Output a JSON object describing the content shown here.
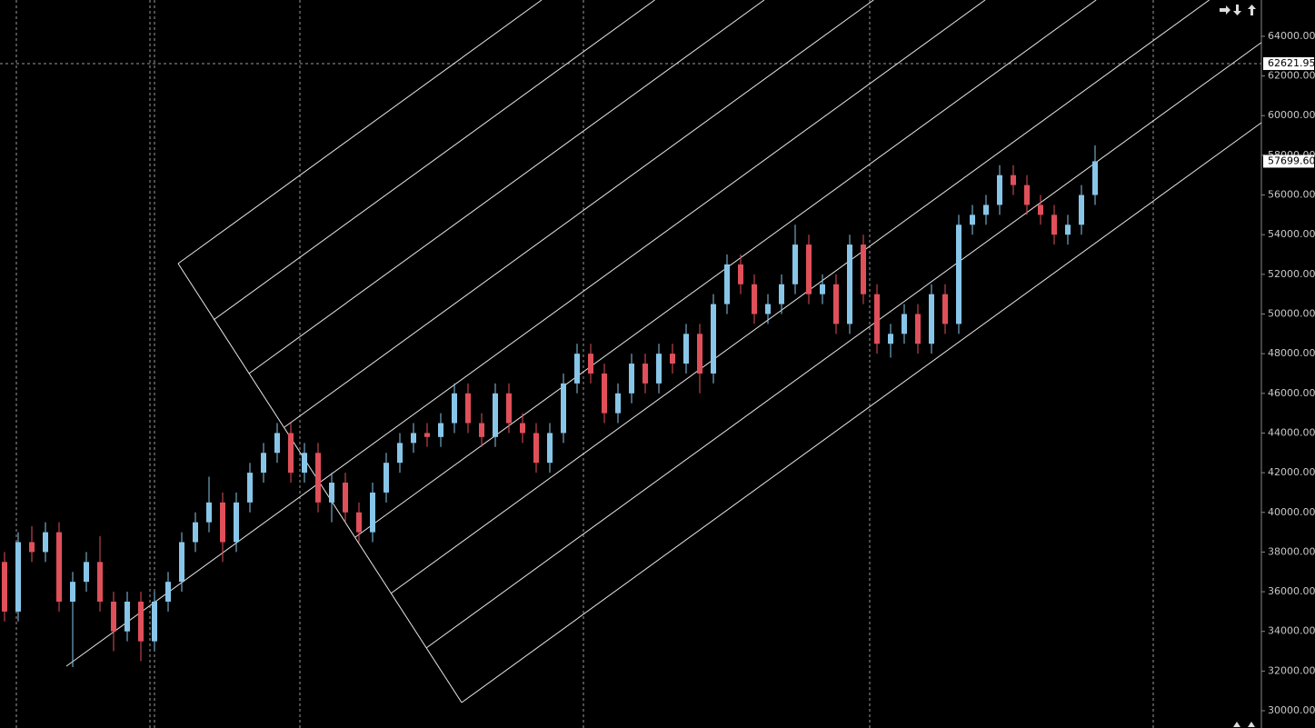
{
  "chart_data": {
    "type": "candlestick",
    "up_color": "#87c6e8",
    "down_color": "#e0505a",
    "open": [
      37500,
      35000,
      38500,
      38000,
      39000,
      35500,
      36500,
      37500,
      35500,
      34000,
      35500,
      33500,
      35500,
      36500,
      38500,
      39500,
      40500,
      38500,
      40500,
      42000,
      43000,
      44000,
      42000,
      43000,
      40500,
      41500,
      40000,
      39000,
      41000,
      42500,
      43500,
      44000,
      43800,
      44500,
      46000,
      44500,
      43800,
      46000,
      44500,
      44000,
      42500,
      44000,
      46500,
      48000,
      47000,
      45000,
      46000,
      47500,
      46500,
      48000,
      47500,
      49000,
      47000,
      50500,
      52500,
      51500,
      50000,
      50500,
      51500,
      53500,
      51000,
      51500,
      49500,
      53500,
      51000,
      48500,
      49000,
      50000,
      48500,
      51000,
      49500,
      54500,
      55000,
      55500,
      57000,
      56500,
      55500,
      55000,
      54000,
      54500,
      56000
    ],
    "high": [
      38000,
      39000,
      39300,
      39500,
      39500,
      37000,
      38000,
      38800,
      36000,
      36000,
      36000,
      36000,
      37000,
      39000,
      40000,
      41800,
      41000,
      41000,
      42500,
      43500,
      44500,
      44500,
      43500,
      43500,
      42000,
      42000,
      40500,
      41500,
      43000,
      44000,
      44500,
      44500,
      45000,
      46500,
      46500,
      45000,
      46500,
      46500,
      45000,
      44500,
      44500,
      47000,
      48500,
      48500,
      47500,
      46500,
      48000,
      48000,
      48500,
      48500,
      49500,
      49500,
      51000,
      53000,
      53000,
      52000,
      51000,
      52000,
      54500,
      54000,
      52000,
      52000,
      54000,
      54000,
      51500,
      49500,
      50500,
      50500,
      51500,
      51500,
      55000,
      55500,
      56000,
      57500,
      57500,
      57000,
      56000,
      55500,
      55000,
      56500,
      58500
    ],
    "low": [
      34500,
      34500,
      37500,
      37500,
      35000,
      32200,
      36000,
      35000,
      33000,
      33500,
      32500,
      33000,
      35000,
      36000,
      38000,
      39000,
      37500,
      38000,
      40000,
      41500,
      42500,
      41500,
      41500,
      40000,
      39500,
      39500,
      38500,
      38500,
      40500,
      42000,
      43000,
      43300,
      43300,
      44000,
      44000,
      43300,
      43300,
      44000,
      43500,
      42000,
      42000,
      43500,
      46000,
      46500,
      44500,
      44500,
      45500,
      46000,
      46000,
      47000,
      47000,
      46000,
      46500,
      50000,
      51000,
      49500,
      49500,
      50000,
      51000,
      50500,
      50500,
      49000,
      49000,
      50500,
      48000,
      47800,
      48500,
      48000,
      48000,
      49000,
      49000,
      54000,
      54500,
      55000,
      56000,
      55000,
      54500,
      53500,
      53500,
      54000,
      55500
    ],
    "close": [
      35000,
      38500,
      38000,
      39000,
      35500,
      36500,
      37500,
      35500,
      34000,
      35500,
      33500,
      35500,
      36500,
      38500,
      39500,
      40500,
      38500,
      40500,
      42000,
      43000,
      44000,
      42000,
      43000,
      40500,
      41500,
      40000,
      39000,
      41000,
      42500,
      43500,
      44000,
      43800,
      44500,
      46000,
      44500,
      43800,
      46000,
      44500,
      44000,
      42500,
      44000,
      46500,
      48000,
      47000,
      45000,
      46000,
      47500,
      46500,
      48000,
      47500,
      49000,
      47000,
      50500,
      52500,
      51500,
      50000,
      50500,
      51500,
      53500,
      51000,
      51500,
      49500,
      53500,
      51000,
      48500,
      49000,
      50000,
      48500,
      51000,
      49500,
      54500,
      55000,
      55500,
      57000,
      56500,
      55500,
      55000,
      54000,
      54500,
      56000,
      57700
    ],
    "ylim": [
      29130,
      65830
    ],
    "yticks": [
      {
        "value": 30000,
        "label": "30000.00"
      },
      {
        "value": 32000,
        "label": "32000.00"
      },
      {
        "value": 34000,
        "label": "34000.00"
      },
      {
        "value": 36000,
        "label": "36000.00"
      },
      {
        "value": 38000,
        "label": "38000.00"
      },
      {
        "value": 40000,
        "label": "40000.00"
      },
      {
        "value": 42000,
        "label": "42000.00"
      },
      {
        "value": 44000,
        "label": "44000.00"
      },
      {
        "value": 46000,
        "label": "46000.00"
      },
      {
        "value": 48000,
        "label": "48000.00"
      },
      {
        "value": 50000,
        "label": "50000.00"
      },
      {
        "value": 52000,
        "label": "52000.00"
      },
      {
        "value": 54000,
        "label": "54000.00"
      },
      {
        "value": 56000,
        "label": "56000.00"
      },
      {
        "value": 58000,
        "label": "58000.00"
      },
      {
        "value": 60000,
        "label": "60000.00"
      },
      {
        "value": 62000,
        "label": "62000.00"
      },
      {
        "value": 64000,
        "label": "64000.00"
      }
    ],
    "crosshair_price": 62621.95,
    "last_price": {
      "value": 57699.6,
      "label": "57699.60"
    }
  }
}
